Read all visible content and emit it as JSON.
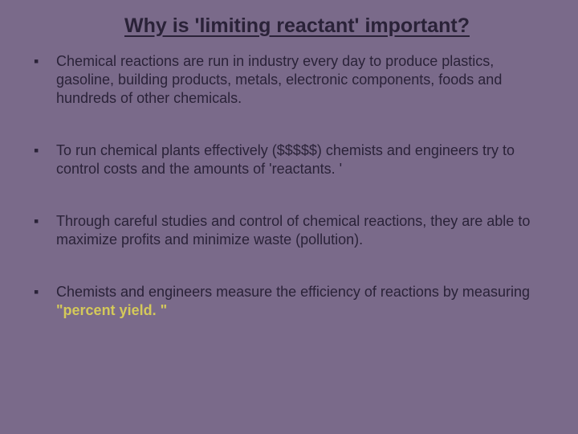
{
  "slide": {
    "title": "Why is 'limiting reactant' important?",
    "bullets": [
      {
        "text": "Chemical reactions are run in industry every day to produce plastics, gasoline, building products, metals, electronic components, foods and hundreds of other chemicals."
      },
      {
        "text": "To run chemical plants effectively ($$$$$) chemists and engineers try to control costs and the amounts of 'reactants. '"
      },
      {
        "text": "Through careful studies and control of chemical reactions, they are able to maximize profits and minimize waste (pollution)."
      },
      {
        "prefix": "Chemists and engineers measure the efficiency of reactions by measuring ",
        "highlight": "\"percent yield. \""
      }
    ],
    "colors": {
      "background": "#7a6a8a",
      "text": "#2a2238",
      "highlight": "#d4c95a"
    },
    "typography": {
      "title_fontsize": 25,
      "body_fontsize": 18,
      "font_family": "Verdana"
    }
  }
}
